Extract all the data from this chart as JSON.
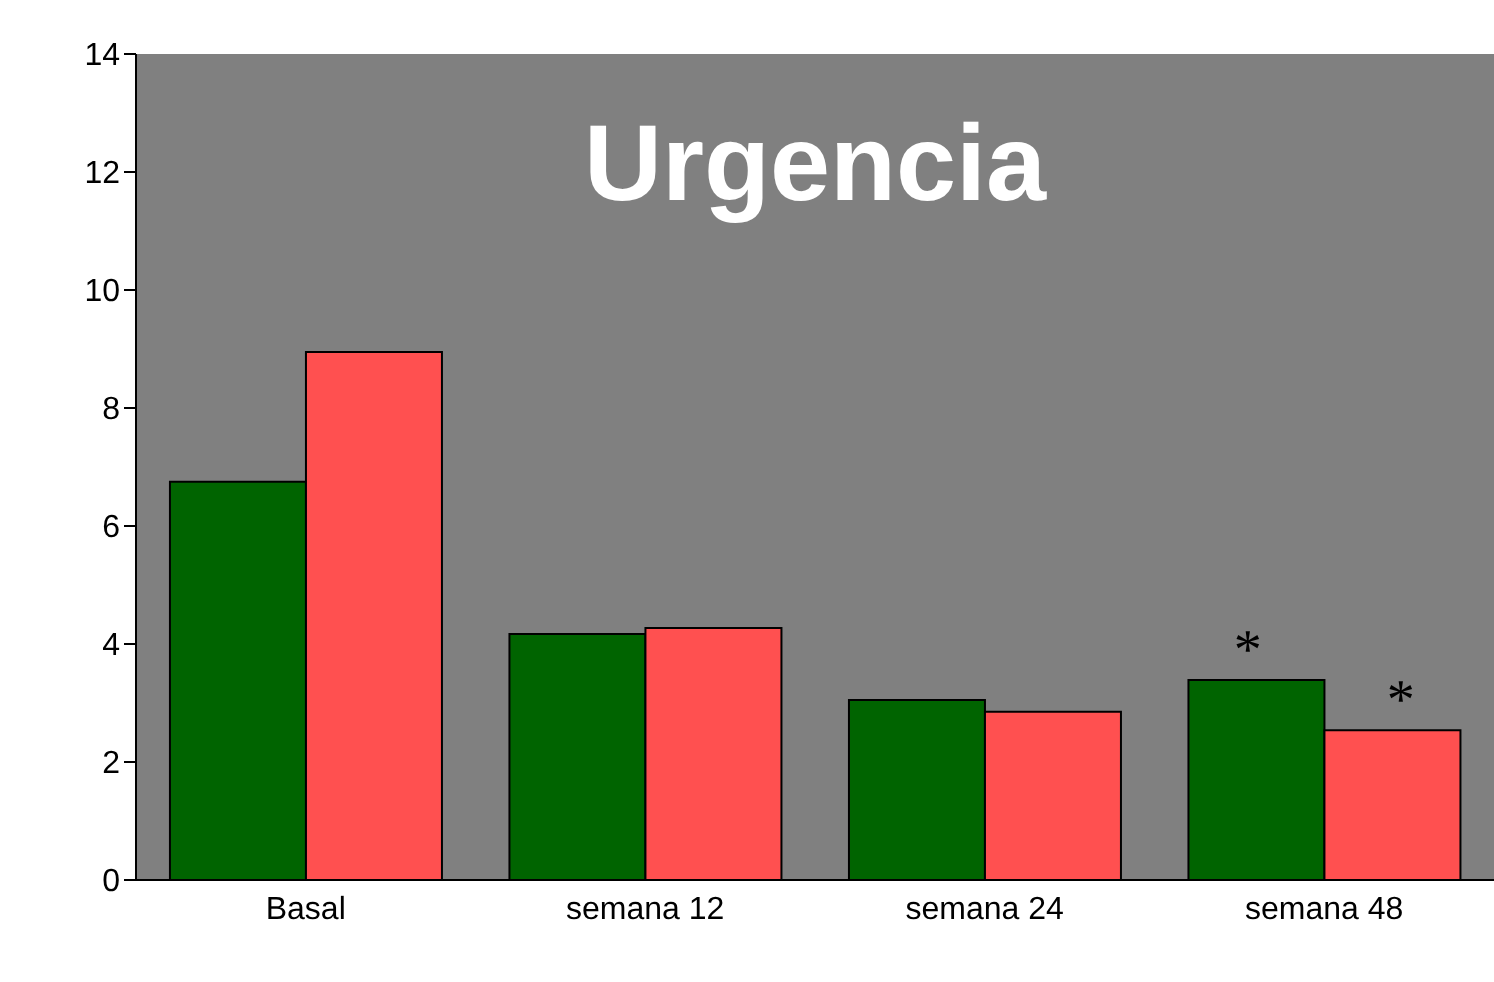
{
  "chart_data": {
    "type": "bar",
    "title": "Urgencia",
    "categories": [
      "Basal",
      "semana 12",
      "semana 24",
      "semana 48"
    ],
    "series": [
      {
        "color": "#006400",
        "values": [
          6.75,
          4.17,
          3.05,
          3.39
        ]
      },
      {
        "color": "#ff5050",
        "values": [
          8.95,
          4.27,
          2.85,
          2.54
        ]
      }
    ],
    "ylim": [
      0,
      14
    ],
    "yticks": [
      0,
      2,
      4,
      6,
      8,
      10,
      12,
      14
    ],
    "grid": false,
    "legend": false,
    "annotations": [
      {
        "text": "*",
        "x": "semana 48",
        "y": 3.39
      },
      {
        "text": "*",
        "x": "semana 48",
        "y": 2.54
      }
    ]
  }
}
